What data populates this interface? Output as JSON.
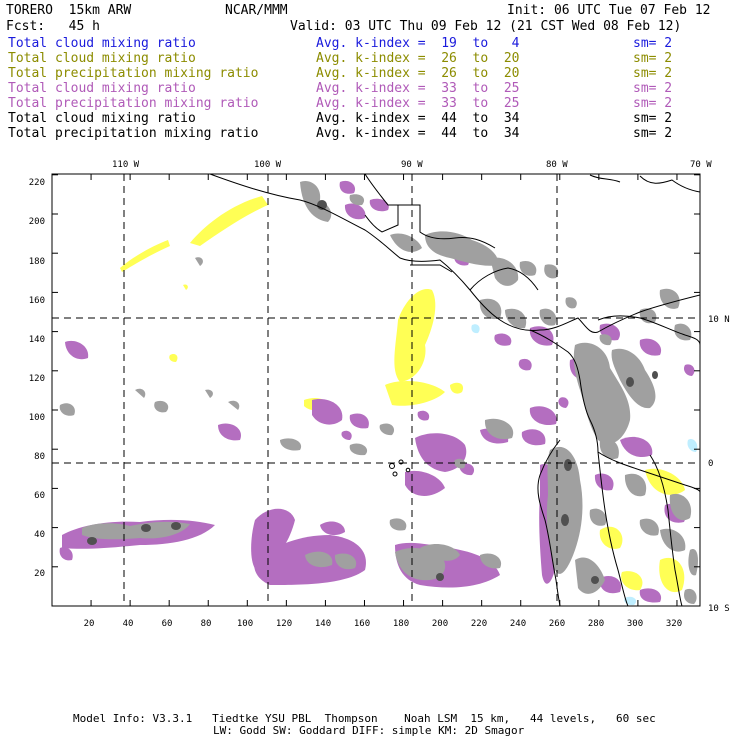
{
  "header": {
    "model": "TORERO  15km ARW",
    "org": "NCAR/MMM",
    "init": "Init: 06 UTC Tue 07 Feb 12",
    "fcst": "Fcst:   45 h",
    "valid": "Valid: 03 UTC Thu 09 Feb 12 (21 CST Wed 08 Feb 12)"
  },
  "legend": [
    {
      "field": "Total cloud mixing ratio",
      "kindex": "Avg. k-index =  19  to   4",
      "sm": "sm= 2",
      "color": "#1a1adc"
    },
    {
      "field": "Total cloud mixing ratio",
      "kindex": "Avg. k-index =  26  to  20",
      "sm": "sm= 2",
      "color": "#8c8c00"
    },
    {
      "field": "Total precipitation mixing ratio",
      "kindex": "Avg. k-index =  26  to  20",
      "sm": "sm= 2",
      "color": "#8c8c00"
    },
    {
      "field": "Total cloud mixing ratio",
      "kindex": "Avg. k-index =  33  to  25",
      "sm": "sm= 2",
      "color": "#b05ab8"
    },
    {
      "field": "Total precipitation mixing ratio",
      "kindex": "Avg. k-index =  33  to  25",
      "sm": "sm= 2",
      "color": "#b05ab8"
    },
    {
      "field": "Total cloud mixing ratio",
      "kindex": "Avg. k-index =  44  to  34",
      "sm": "sm= 2",
      "color": "#000000"
    },
    {
      "field": "Total precipitation mixing ratio",
      "kindex": "Avg. k-index =  44  to  34",
      "sm": "sm= 2",
      "color": "#000000"
    }
  ],
  "map": {
    "top_labels": [
      "110 W",
      "100 W",
      "90 W",
      "80 W",
      "70 W"
    ],
    "right_labels": [
      "10 N",
      "0",
      "10 S"
    ],
    "y_ticks": [
      "220",
      "200",
      "180",
      "160",
      "140",
      "120",
      "100",
      "80",
      "60",
      "40",
      "20"
    ],
    "x_ticks": [
      "20",
      "40",
      "60",
      "80",
      "100",
      "120",
      "140",
      "160",
      "180",
      "200",
      "220",
      "240",
      "260",
      "280",
      "300",
      "320"
    ],
    "colors": {
      "cloud_gray": "#a0a0a0",
      "dark_gray": "#505050",
      "purple": "#b46ec0",
      "yellow": "#ffff55",
      "cyan": "#bfeeff"
    }
  },
  "footer": {
    "line1": "Model Info: V3.3.1   Tiedtke YSU PBL  Thompson    Noah LSM  15 km,   44 levels,   60 sec",
    "line2": "LW: Godd SW: Goddard DIFF: simple KM: 2D Smagor"
  }
}
